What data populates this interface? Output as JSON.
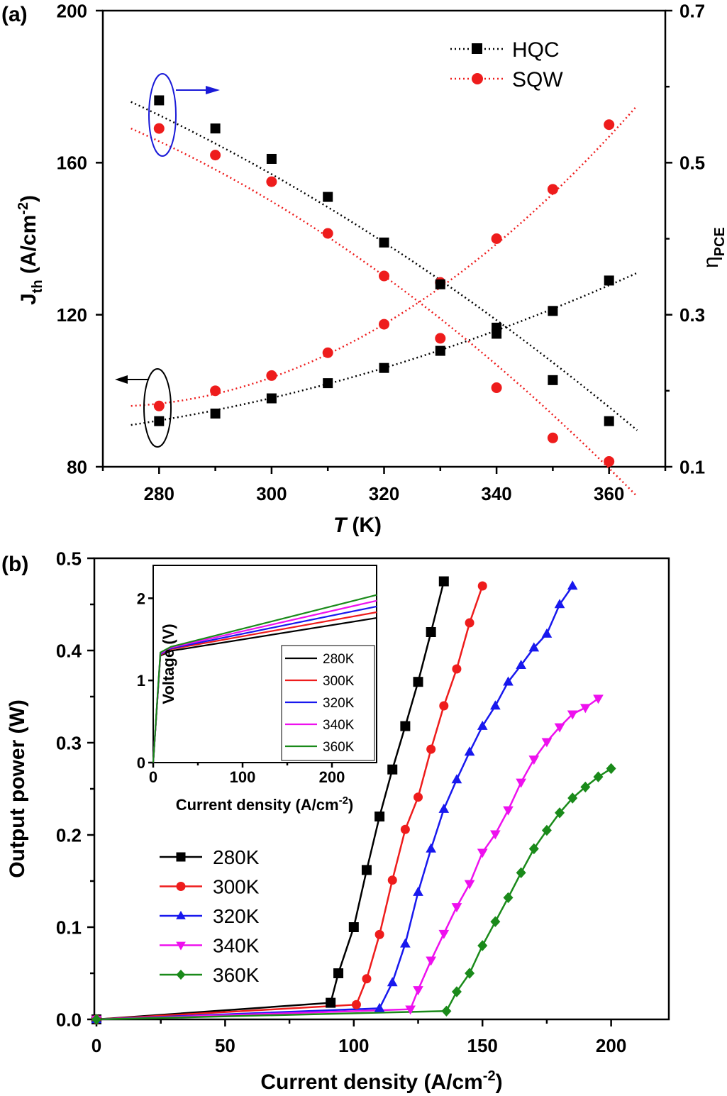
{
  "chart_data": [
    {
      "panel_label": "(a)",
      "type": "scatter",
      "xlabel": "T",
      "xlabel_unit": "(K)",
      "ylabel_main": "J",
      "ylabel_sub": "th",
      "ylabel_unit": " (A/cm",
      "ylabel_sup": "-2",
      "ylabel_close": ")",
      "y2label_main": "η",
      "y2label_sub": "PCE",
      "xlim": [
        270,
        370
      ],
      "ylim": [
        80,
        200
      ],
      "y2lim": [
        0.1,
        0.7
      ],
      "xticks": [
        "280",
        "300",
        "320",
        "340",
        "360"
      ],
      "yticks": [
        "80",
        "120",
        "160",
        "200"
      ],
      "y2ticks": [
        "0.1",
        "0.3",
        "0.5",
        "0.7"
      ],
      "legend": {
        "position": "top-right",
        "entries": [
          "HQC",
          "SQW"
        ]
      },
      "x": [
        280,
        290,
        300,
        310,
        320,
        330,
        340,
        350,
        360
      ],
      "series": [
        {
          "name": "HQC",
          "axis": "left",
          "marker": "square",
          "color": "#000000",
          "values": [
            92,
            94,
            98,
            102,
            106,
            110.5,
            115,
            121,
            129
          ],
          "fit": [
            91,
            131
          ]
        },
        {
          "name": "SQW",
          "axis": "left",
          "marker": "circle",
          "color": "#ee1c1c",
          "values": [
            96,
            100,
            104,
            110,
            117.5,
            128.5,
            140,
            153,
            170
          ],
          "fit": [
            96,
            175
          ]
        },
        {
          "name": "HQC",
          "axis": "right",
          "marker": "square",
          "color": "#000000",
          "values": [
            0.582,
            0.545,
            0.505,
            0.455,
            0.395,
            0.34,
            0.283,
            0.214,
            0.16
          ],
          "fit": [
            0.58,
            0.148
          ]
        },
        {
          "name": "SQW",
          "axis": "right",
          "marker": "circle",
          "color": "#ee1c1c",
          "values": [
            0.545,
            0.51,
            0.475,
            0.407,
            0.351,
            0.269,
            0.204,
            0.138,
            0.107
          ],
          "fit": [
            0.545,
            0.061
          ]
        }
      ]
    },
    {
      "panel_label": "(b)",
      "type": "line",
      "xlabel": "Current density",
      "xlabel_unit": " (A/cm",
      "xlabel_sup": "-2",
      "xlabel_close": ")",
      "ylabel": "Output power (W)",
      "xlim": [
        0,
        210
      ],
      "ylim": [
        0,
        0.5
      ],
      "xticks": [
        "0",
        "50",
        "100",
        "150",
        "200"
      ],
      "yticks": [
        "0.0",
        "0.1",
        "0.2",
        "0.3",
        "0.4",
        "0.5"
      ],
      "legend": {
        "position": "bottom-left",
        "entries": [
          "280K",
          "300K",
          "320K",
          "340K",
          "360K"
        ]
      },
      "series": [
        {
          "name": "280K",
          "marker": "square",
          "color": "#000000",
          "x": [
            0,
            91,
            94,
            100,
            105,
            110,
            115,
            120,
            125,
            130,
            135
          ],
          "values": [
            0,
            0.018,
            0.05,
            0.1,
            0.162,
            0.22,
            0.271,
            0.318,
            0.366,
            0.42,
            0.475
          ]
        },
        {
          "name": "300K",
          "marker": "circle",
          "color": "#ee1c1c",
          "x": [
            0,
            101,
            105,
            110,
            115,
            120,
            125,
            130,
            135,
            140,
            145,
            150
          ],
          "values": [
            0,
            0.016,
            0.044,
            0.092,
            0.151,
            0.206,
            0.241,
            0.293,
            0.34,
            0.38,
            0.43,
            0.47
          ]
        },
        {
          "name": "320K",
          "marker": "triangle-up",
          "color": "#1818ee",
          "x": [
            0,
            110,
            115,
            120,
            125,
            130,
            135,
            140,
            145,
            150,
            155,
            160,
            165,
            170,
            175,
            180,
            185
          ],
          "values": [
            0,
            0.012,
            0.04,
            0.082,
            0.138,
            0.185,
            0.228,
            0.26,
            0.29,
            0.318,
            0.34,
            0.366,
            0.384,
            0.403,
            0.418,
            0.45,
            0.47
          ]
        },
        {
          "name": "340K",
          "marker": "triangle-down",
          "color": "#ee10ee",
          "x": [
            0,
            122,
            125,
            130,
            135,
            140,
            145,
            150,
            155,
            160,
            165,
            170,
            175,
            180,
            185,
            190,
            195
          ],
          "values": [
            0,
            0.011,
            0.032,
            0.064,
            0.093,
            0.122,
            0.147,
            0.181,
            0.201,
            0.227,
            0.257,
            0.282,
            0.301,
            0.317,
            0.331,
            0.338,
            0.348
          ]
        },
        {
          "name": "360K",
          "marker": "diamond",
          "color": "#1a8a1a",
          "x": [
            0,
            136,
            140,
            145,
            150,
            155,
            160,
            165,
            170,
            175,
            180,
            185,
            190,
            195,
            200
          ],
          "values": [
            0,
            0.009,
            0.03,
            0.05,
            0.08,
            0.106,
            0.132,
            0.159,
            0.185,
            0.205,
            0.224,
            0.24,
            0.252,
            0.263,
            0.272
          ]
        }
      ],
      "inset": {
        "type": "line",
        "xlabel": "Current density",
        "xlabel_unit": " (A/cm",
        "xlabel_sup": "-2",
        "xlabel_close": ")",
        "ylabel": "Voltage (V)",
        "xlim": [
          0,
          250
        ],
        "ylim": [
          0,
          2.4
        ],
        "xticks": [
          "0",
          "100",
          "200"
        ],
        "yticks": [
          "0",
          "1",
          "2"
        ],
        "legend": {
          "position": "bottom-right",
          "entries": [
            "280K",
            "300K",
            "320K",
            "340K",
            "360K"
          ]
        },
        "series": [
          {
            "name": "280K",
            "color": "#000000",
            "x": [
              0,
              8,
              20,
              250
            ],
            "values": [
              0,
              1.3,
              1.36,
              1.76
            ]
          },
          {
            "name": "300K",
            "color": "#ee1c1c",
            "x": [
              0,
              8,
              20,
              250
            ],
            "values": [
              0,
              1.31,
              1.38,
              1.83
            ]
          },
          {
            "name": "320K",
            "color": "#1818ee",
            "x": [
              0,
              8,
              20,
              250
            ],
            "values": [
              0,
              1.32,
              1.39,
              1.9
            ]
          },
          {
            "name": "340K",
            "color": "#ee10ee",
            "x": [
              0,
              8,
              20,
              250
            ],
            "values": [
              0,
              1.33,
              1.4,
              1.97
            ]
          },
          {
            "name": "360K",
            "color": "#1a8a1a",
            "x": [
              0,
              8,
              20,
              250
            ],
            "values": [
              0,
              1.34,
              1.41,
              2.04
            ]
          }
        ]
      }
    }
  ]
}
